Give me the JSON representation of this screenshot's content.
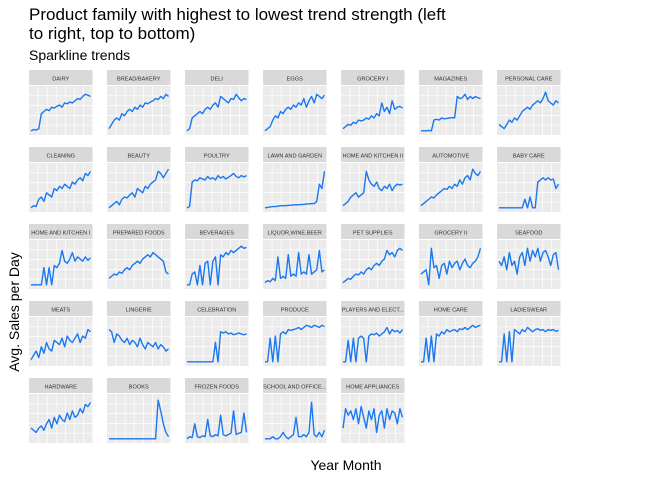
{
  "chart_data": {
    "type": "line",
    "title": "Product family with highest to lowest trend strength (left to right, top to bottom)",
    "subtitle": "Sparkline trends",
    "xlabel": "Year Month",
    "ylabel": "Avg. Sales per Day",
    "grid": true,
    "legend": "none",
    "colors": {
      "line": "#1a78f0",
      "panel": "#ebebeb",
      "strip": "#d9d9d9",
      "gridline": "#ffffff"
    },
    "panels": [
      {
        "name": "DAIRY",
        "values": [
          0.05,
          0.08,
          0.07,
          0.1,
          0.45,
          0.5,
          0.55,
          0.52,
          0.6,
          0.58,
          0.62,
          0.65,
          0.6,
          0.7,
          0.68,
          0.72,
          0.7,
          0.75,
          0.8,
          0.78,
          0.85,
          0.9,
          0.88,
          0.85
        ]
      },
      {
        "name": "BREAD/BAKERY",
        "values": [
          0.1,
          0.2,
          0.3,
          0.35,
          0.3,
          0.45,
          0.4,
          0.5,
          0.55,
          0.5,
          0.6,
          0.55,
          0.65,
          0.6,
          0.7,
          0.68,
          0.72,
          0.75,
          0.8,
          0.78,
          0.85,
          0.8,
          0.9,
          0.85
        ]
      },
      {
        "name": "DELI",
        "values": [
          0.05,
          0.1,
          0.35,
          0.4,
          0.45,
          0.5,
          0.45,
          0.55,
          0.6,
          0.55,
          0.65,
          0.7,
          0.6,
          0.85,
          0.8,
          0.75,
          0.7,
          0.8,
          0.78,
          0.9,
          0.82,
          0.75,
          0.8,
          0.78
        ]
      },
      {
        "name": "EGGS",
        "values": [
          0.05,
          0.1,
          0.15,
          0.3,
          0.4,
          0.35,
          0.5,
          0.45,
          0.55,
          0.6,
          0.55,
          0.65,
          0.6,
          0.7,
          0.65,
          0.8,
          0.6,
          0.75,
          0.85,
          0.7,
          0.9,
          0.85,
          0.8,
          0.88
        ]
      },
      {
        "name": "GROCERY I",
        "values": [
          0.1,
          0.15,
          0.2,
          0.18,
          0.25,
          0.22,
          0.3,
          0.28,
          0.3,
          0.35,
          0.32,
          0.4,
          0.35,
          0.45,
          0.4,
          0.7,
          0.5,
          0.6,
          0.45,
          0.75,
          0.55,
          0.6,
          0.62,
          0.58
        ]
      },
      {
        "name": "MAGAZINES",
        "values": [
          0.05,
          0.05,
          0.05,
          0.06,
          0.05,
          0.3,
          0.32,
          0.3,
          0.35,
          0.33,
          0.34,
          0.35,
          0.36,
          0.35,
          0.85,
          0.8,
          0.82,
          0.9,
          0.78,
          0.85,
          0.8,
          0.85,
          0.82,
          0.8
        ]
      },
      {
        "name": "PERSONAL CARE",
        "values": [
          0.2,
          0.15,
          0.1,
          0.2,
          0.3,
          0.25,
          0.35,
          0.3,
          0.4,
          0.5,
          0.55,
          0.6,
          0.55,
          0.65,
          0.7,
          0.75,
          0.7,
          0.8,
          0.95,
          0.75,
          0.7,
          0.65,
          0.75,
          0.7
        ]
      },
      {
        "name": "CLEANING",
        "values": [
          0.05,
          0.1,
          0.08,
          0.25,
          0.3,
          0.2,
          0.4,
          0.35,
          0.3,
          0.5,
          0.45,
          0.55,
          0.5,
          0.6,
          0.55,
          0.5,
          0.65,
          0.6,
          0.7,
          0.75,
          0.68,
          0.85,
          0.8,
          0.9
        ]
      },
      {
        "name": "BEAUTY",
        "values": [
          0.05,
          0.1,
          0.15,
          0.2,
          0.12,
          0.25,
          0.3,
          0.28,
          0.35,
          0.4,
          0.3,
          0.5,
          0.45,
          0.4,
          0.55,
          0.5,
          0.6,
          0.65,
          0.7,
          0.9,
          0.85,
          0.75,
          0.85,
          0.95
        ]
      },
      {
        "name": "POULTRY",
        "values": [
          0.05,
          0.08,
          0.65,
          0.7,
          0.68,
          0.75,
          0.72,
          0.7,
          0.78,
          0.72,
          0.75,
          0.7,
          0.8,
          0.74,
          0.78,
          0.72,
          0.76,
          0.8,
          0.85,
          0.78,
          0.75,
          0.8,
          0.77,
          0.8
        ]
      },
      {
        "name": "LAWN AND GARDEN",
        "values": [
          0.05,
          0.06,
          0.07,
          0.08,
          0.08,
          0.09,
          0.1,
          0.1,
          0.1,
          0.11,
          0.11,
          0.12,
          0.12,
          0.12,
          0.13,
          0.13,
          0.14,
          0.14,
          0.15,
          0.15,
          0.2,
          0.6,
          0.5,
          0.9
        ]
      },
      {
        "name": "HOME AND KITCHEN II",
        "values": [
          0.1,
          0.15,
          0.2,
          0.3,
          0.35,
          0.4,
          0.3,
          0.35,
          0.4,
          0.9,
          0.7,
          0.6,
          0.55,
          0.65,
          0.5,
          0.45,
          0.55,
          0.5,
          0.6,
          0.45,
          0.55,
          0.6,
          0.58,
          0.6
        ]
      },
      {
        "name": "AUTOMOTIVE",
        "values": [
          0.1,
          0.15,
          0.2,
          0.25,
          0.3,
          0.28,
          0.35,
          0.4,
          0.45,
          0.5,
          0.48,
          0.55,
          0.5,
          0.6,
          0.55,
          0.7,
          0.6,
          0.75,
          0.8,
          0.7,
          0.95,
          0.85,
          0.8,
          0.9
        ]
      },
      {
        "name": "BABY CARE",
        "values": [
          0.05,
          0.05,
          0.05,
          0.05,
          0.05,
          0.05,
          0.05,
          0.05,
          0.05,
          0.05,
          0.25,
          0.05,
          0.3,
          0.05,
          0.05,
          0.65,
          0.7,
          0.75,
          0.7,
          0.75,
          0.7,
          0.72,
          0.5,
          0.6
        ]
      },
      {
        "name": "HOME AND KITCHEN I",
        "values": [
          0.05,
          0.05,
          0.05,
          0.05,
          0.05,
          0.45,
          0.05,
          0.45,
          0.05,
          0.5,
          0.45,
          0.55,
          0.85,
          0.6,
          0.55,
          0.65,
          0.8,
          0.6,
          0.7,
          0.65,
          0.6,
          0.7,
          0.62,
          0.68
        ]
      },
      {
        "name": "PREPARED FOODS",
        "values": [
          0.2,
          0.25,
          0.3,
          0.28,
          0.35,
          0.32,
          0.4,
          0.45,
          0.4,
          0.5,
          0.55,
          0.6,
          0.55,
          0.65,
          0.7,
          0.75,
          0.7,
          0.8,
          0.75,
          0.7,
          0.65,
          0.6,
          0.35,
          0.3
        ]
      },
      {
        "name": "BEVERAGES",
        "values": [
          0.05,
          0.05,
          0.3,
          0.35,
          0.05,
          0.5,
          0.05,
          0.55,
          0.6,
          0.05,
          0.6,
          0.7,
          0.05,
          0.75,
          0.7,
          0.8,
          0.75,
          0.85,
          0.8,
          0.85,
          0.9,
          0.95,
          0.9,
          0.92
        ]
      },
      {
        "name": "LIQUOR,WINE,BEER",
        "values": [
          0.1,
          0.15,
          0.12,
          0.2,
          0.15,
          0.7,
          0.2,
          0.25,
          0.2,
          0.75,
          0.25,
          0.3,
          0.25,
          0.8,
          0.3,
          0.35,
          0.3,
          0.75,
          0.3,
          0.35,
          0.4,
          0.85,
          0.35,
          0.4
        ]
      },
      {
        "name": "PET SUPPLIES",
        "values": [
          0.1,
          0.15,
          0.2,
          0.18,
          0.25,
          0.3,
          0.28,
          0.35,
          0.3,
          0.4,
          0.45,
          0.4,
          0.5,
          0.55,
          0.5,
          0.6,
          0.65,
          0.85,
          0.75,
          0.8,
          0.7,
          0.85,
          0.9,
          0.85
        ]
      },
      {
        "name": "GROCERY II",
        "values": [
          0.3,
          0.35,
          0.4,
          0.05,
          0.9,
          0.45,
          0.5,
          0.2,
          0.5,
          0.55,
          0.3,
          0.6,
          0.45,
          0.55,
          0.6,
          0.4,
          0.55,
          0.65,
          0.5,
          0.45,
          0.55,
          0.6,
          0.7,
          0.9
        ]
      },
      {
        "name": "SEAFOOD",
        "values": [
          0.6,
          0.5,
          0.7,
          0.4,
          0.8,
          0.5,
          0.6,
          0.3,
          0.7,
          0.8,
          0.5,
          0.9,
          0.6,
          0.85,
          0.7,
          0.9,
          0.6,
          0.8,
          0.85,
          0.7,
          0.5,
          0.75,
          0.8,
          0.4
        ]
      },
      {
        "name": "MEATS",
        "values": [
          0.1,
          0.2,
          0.3,
          0.15,
          0.4,
          0.25,
          0.5,
          0.35,
          0.3,
          0.55,
          0.5,
          0.45,
          0.6,
          0.4,
          0.65,
          0.55,
          0.5,
          0.6,
          0.7,
          0.5,
          0.65,
          0.6,
          0.8,
          0.75
        ]
      },
      {
        "name": "LINGERIE",
        "values": [
          0.8,
          0.75,
          0.5,
          0.7,
          0.65,
          0.55,
          0.5,
          0.6,
          0.45,
          0.55,
          0.5,
          0.4,
          0.6,
          0.45,
          0.35,
          0.5,
          0.45,
          0.4,
          0.5,
          0.35,
          0.45,
          0.4,
          0.3,
          0.35
        ]
      },
      {
        "name": "CELEBRATION",
        "values": [
          0.05,
          0.05,
          0.05,
          0.05,
          0.05,
          0.05,
          0.05,
          0.05,
          0.05,
          0.05,
          0.05,
          0.5,
          0.05,
          0.75,
          0.72,
          0.75,
          0.7,
          0.72,
          0.68,
          0.7,
          0.72,
          0.7,
          0.68,
          0.7
        ]
      },
      {
        "name": "PRODUCE",
        "values": [
          0.05,
          0.05,
          0.6,
          0.05,
          0.65,
          0.05,
          0.7,
          0.75,
          0.7,
          0.8,
          0.78,
          0.8,
          0.82,
          0.85,
          0.8,
          0.85,
          0.9,
          0.88,
          0.85,
          0.9,
          0.88,
          0.85,
          0.9,
          0.87
        ]
      },
      {
        "name": "PLAYERS AND ELECT...",
        "values": [
          0.05,
          0.05,
          0.55,
          0.05,
          0.6,
          0.05,
          0.6,
          0.65,
          0.6,
          0.05,
          0.65,
          0.7,
          0.68,
          0.72,
          0.65,
          0.7,
          0.75,
          0.85,
          0.7,
          0.8,
          0.75,
          0.78,
          0.72,
          0.8
        ]
      },
      {
        "name": "HOME CARE",
        "values": [
          0.05,
          0.05,
          0.6,
          0.05,
          0.65,
          0.05,
          0.7,
          0.65,
          0.75,
          0.7,
          0.8,
          0.75,
          0.78,
          0.8,
          0.75,
          0.82,
          0.8,
          0.85,
          0.8,
          0.85,
          0.9,
          0.85,
          0.88,
          0.9
        ]
      },
      {
        "name": "LADIESWEAR",
        "values": [
          0.05,
          0.05,
          0.7,
          0.05,
          0.75,
          0.05,
          0.8,
          0.75,
          0.7,
          0.8,
          0.75,
          0.85,
          0.8,
          0.75,
          0.8,
          0.82,
          0.78,
          0.8,
          0.75,
          0.8,
          0.78,
          0.8,
          0.76,
          0.78
        ]
      },
      {
        "name": "HARDWARE",
        "values": [
          0.3,
          0.25,
          0.2,
          0.3,
          0.35,
          0.25,
          0.4,
          0.5,
          0.3,
          0.55,
          0.4,
          0.6,
          0.5,
          0.45,
          0.65,
          0.5,
          0.7,
          0.55,
          0.6,
          0.75,
          0.65,
          0.85,
          0.8,
          0.9
        ]
      },
      {
        "name": "BOOKS",
        "values": [
          0.05,
          0.05,
          0.05,
          0.05,
          0.05,
          0.05,
          0.05,
          0.05,
          0.05,
          0.05,
          0.05,
          0.05,
          0.05,
          0.05,
          0.05,
          0.05,
          0.05,
          0.05,
          0.05,
          0.95,
          0.7,
          0.4,
          0.2,
          0.1
        ]
      },
      {
        "name": "FROZEN FOODS",
        "values": [
          0.05,
          0.1,
          0.08,
          0.4,
          0.1,
          0.08,
          0.12,
          0.1,
          0.5,
          0.12,
          0.1,
          0.15,
          0.12,
          0.6,
          0.15,
          0.12,
          0.15,
          0.18,
          0.7,
          0.15,
          0.18,
          0.2,
          0.65,
          0.2
        ]
      },
      {
        "name": "SCHOOL AND OFFICE...",
        "values": [
          0.05,
          0.05,
          0.05,
          0.1,
          0.05,
          0.05,
          0.1,
          0.2,
          0.1,
          0.05,
          0.1,
          0.15,
          0.55,
          0.1,
          0.1,
          0.15,
          0.1,
          0.2,
          0.9,
          0.15,
          0.1,
          0.2,
          0.1,
          0.25
        ]
      },
      {
        "name": "HOME APPLIANCES",
        "values": [
          0.3,
          0.75,
          0.6,
          0.7,
          0.5,
          0.75,
          0.4,
          0.8,
          0.55,
          0.3,
          0.7,
          0.5,
          0.75,
          0.2,
          0.6,
          0.7,
          0.3,
          0.75,
          0.5,
          0.7,
          0.65,
          0.4,
          0.75,
          0.55
        ]
      }
    ]
  }
}
